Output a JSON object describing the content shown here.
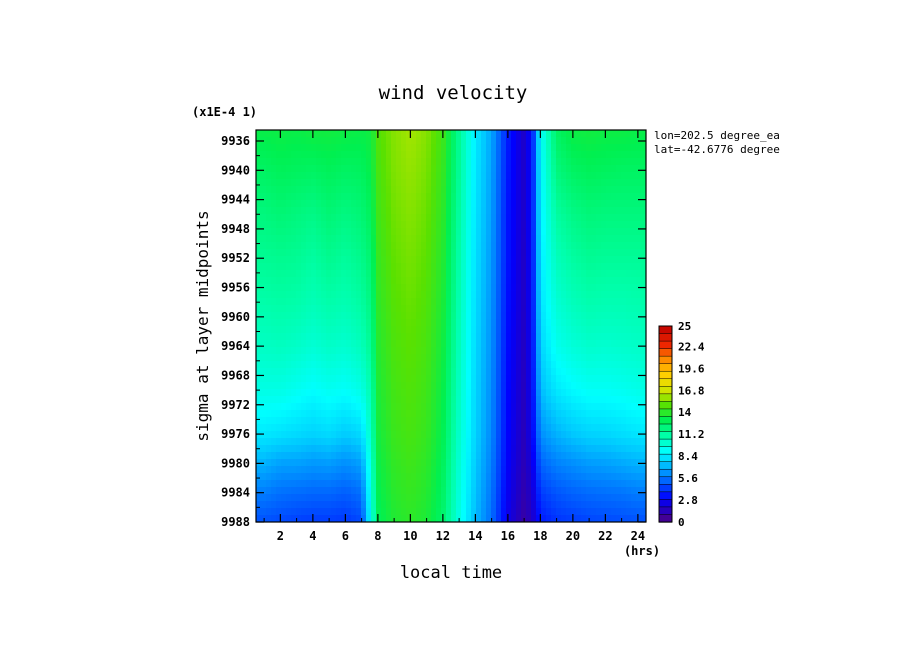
{
  "chart_data": {
    "type": "heatmap",
    "title": "wind velocity",
    "xlabel": "local time",
    "xunits": "(hrs)",
    "ylabel": "sigma at layer midpoints",
    "yscale_note": "(x1E-4 1)",
    "annotations": [
      "lon=202.5 degree_ea",
      "lat=-42.6776 degree"
    ],
    "x_ticks": [
      "2",
      "4",
      "6",
      "8",
      "10",
      "12",
      "14",
      "16",
      "18",
      "20",
      "22",
      "24"
    ],
    "y_ticks": [
      "9936",
      "9940",
      "9944",
      "9948",
      "9952",
      "9956",
      "9960",
      "9964",
      "9968",
      "9972",
      "9976",
      "9980",
      "9984",
      "9988"
    ],
    "xlim": [
      0.5,
      24.5
    ],
    "ylim": [
      9934.5,
      9988
    ],
    "colorbar": {
      "ticks": [
        "25",
        "22.4",
        "19.6",
        "16.8",
        "14",
        "11.2",
        "8.4",
        "5.6",
        "2.8",
        "0"
      ],
      "min": 0,
      "max": 25
    },
    "x": [
      0.5,
      1,
      2,
      3,
      4,
      5,
      6,
      7,
      7.6,
      8,
      9,
      10,
      11,
      12,
      13,
      14,
      15,
      16,
      17,
      17.5,
      18,
      19,
      20,
      21,
      22,
      23,
      24,
      24.5
    ],
    "y": [
      9934.5,
      9940,
      9946,
      9952,
      9958,
      9964,
      9970,
      9976,
      9980,
      9984,
      9988
    ],
    "z": [
      [
        13.2,
        13.2,
        13.3,
        13.2,
        13.4,
        13.4,
        13.3,
        13.2,
        13.4,
        14.8,
        15.6,
        16.0,
        15.6,
        14.4,
        11.5,
        8.5,
        6.7,
        3.6,
        1.8,
        3.5,
        9.0,
        12.6,
        13.3,
        13.4,
        13.3,
        13.3,
        13.2,
        13.2
      ],
      [
        12.6,
        12.6,
        12.8,
        12.7,
        12.6,
        12.8,
        12.6,
        12.7,
        13.2,
        14.6,
        15.5,
        15.8,
        15.4,
        14.2,
        11.4,
        8.4,
        6.6,
        3.5,
        1.8,
        3.4,
        8.8,
        12.0,
        12.6,
        12.8,
        12.7,
        12.6,
        12.6,
        12.6
      ],
      [
        12.0,
        12.0,
        12.2,
        12.0,
        11.8,
        12.2,
        11.9,
        12.2,
        12.8,
        14.4,
        15.3,
        15.6,
        15.2,
        14.0,
        11.2,
        8.3,
        6.5,
        3.4,
        1.8,
        3.4,
        8.6,
        11.2,
        11.8,
        12.1,
        12.0,
        12.0,
        12.0,
        12.0
      ],
      [
        11.5,
        11.5,
        11.6,
        11.5,
        11.2,
        11.6,
        11.3,
        11.7,
        12.4,
        14.2,
        15.1,
        15.4,
        15.0,
        13.8,
        11.0,
        8.2,
        6.4,
        3.4,
        1.7,
        3.3,
        8.4,
        10.6,
        11.2,
        11.5,
        11.4,
        11.4,
        11.4,
        11.5
      ],
      [
        11.0,
        11.0,
        11.1,
        11.0,
        10.7,
        11.0,
        10.8,
        11.2,
        12.0,
        14.0,
        14.9,
        15.2,
        14.8,
        13.6,
        10.8,
        8.1,
        6.3,
        3.3,
        1.7,
        3.2,
        8.2,
        10.0,
        10.6,
        10.9,
        10.8,
        10.8,
        10.9,
        11.0
      ],
      [
        10.4,
        10.4,
        10.5,
        10.3,
        10.0,
        10.3,
        10.1,
        10.6,
        11.6,
        13.8,
        14.7,
        15.0,
        14.6,
        13.4,
        10.6,
        8.0,
        6.2,
        3.2,
        1.6,
        3.1,
        7.8,
        9.4,
        9.9,
        10.2,
        10.1,
        10.2,
        10.3,
        10.4
      ],
      [
        9.6,
        9.6,
        9.6,
        9.3,
        9.0,
        9.3,
        9.1,
        9.6,
        11.0,
        13.6,
        14.5,
        14.8,
        14.4,
        13.2,
        10.4,
        7.9,
        6.1,
        3.1,
        1.5,
        3.0,
        7.2,
        8.4,
        8.9,
        9.2,
        9.2,
        9.3,
        9.5,
        9.6
      ],
      [
        8.4,
        8.4,
        8.2,
        8.0,
        7.8,
        8.0,
        7.6,
        8.0,
        10.6,
        13.4,
        14.3,
        14.6,
        14.2,
        13.0,
        10.2,
        7.8,
        6.0,
        3.0,
        1.4,
        2.8,
        6.2,
        7.0,
        7.5,
        7.8,
        7.9,
        8.1,
        8.3,
        8.4
      ],
      [
        7.0,
        7.0,
        6.6,
        6.6,
        6.4,
        6.5,
        6.2,
        6.6,
        10.2,
        13.2,
        14.1,
        14.4,
        14.0,
        12.8,
        10.0,
        7.6,
        5.8,
        2.9,
        1.3,
        2.4,
        5.2,
        5.9,
        6.2,
        6.5,
        6.6,
        6.8,
        7.0,
        7.0
      ],
      [
        5.8,
        5.8,
        5.5,
        5.4,
        5.3,
        5.3,
        5.1,
        5.5,
        9.9,
        13.0,
        13.9,
        14.2,
        13.8,
        12.6,
        9.8,
        7.4,
        5.6,
        2.7,
        1.1,
        2.0,
        4.3,
        4.9,
        5.2,
        5.4,
        5.5,
        5.6,
        5.8,
        5.8
      ],
      [
        4.8,
        4.8,
        4.6,
        4.4,
        4.3,
        4.3,
        4.2,
        4.6,
        9.6,
        12.8,
        13.7,
        14.0,
        13.6,
        12.4,
        9.6,
        7.2,
        5.4,
        2.5,
        0.9,
        1.7,
        3.5,
        4.1,
        4.3,
        4.5,
        4.6,
        4.7,
        4.8,
        4.8
      ]
    ]
  }
}
